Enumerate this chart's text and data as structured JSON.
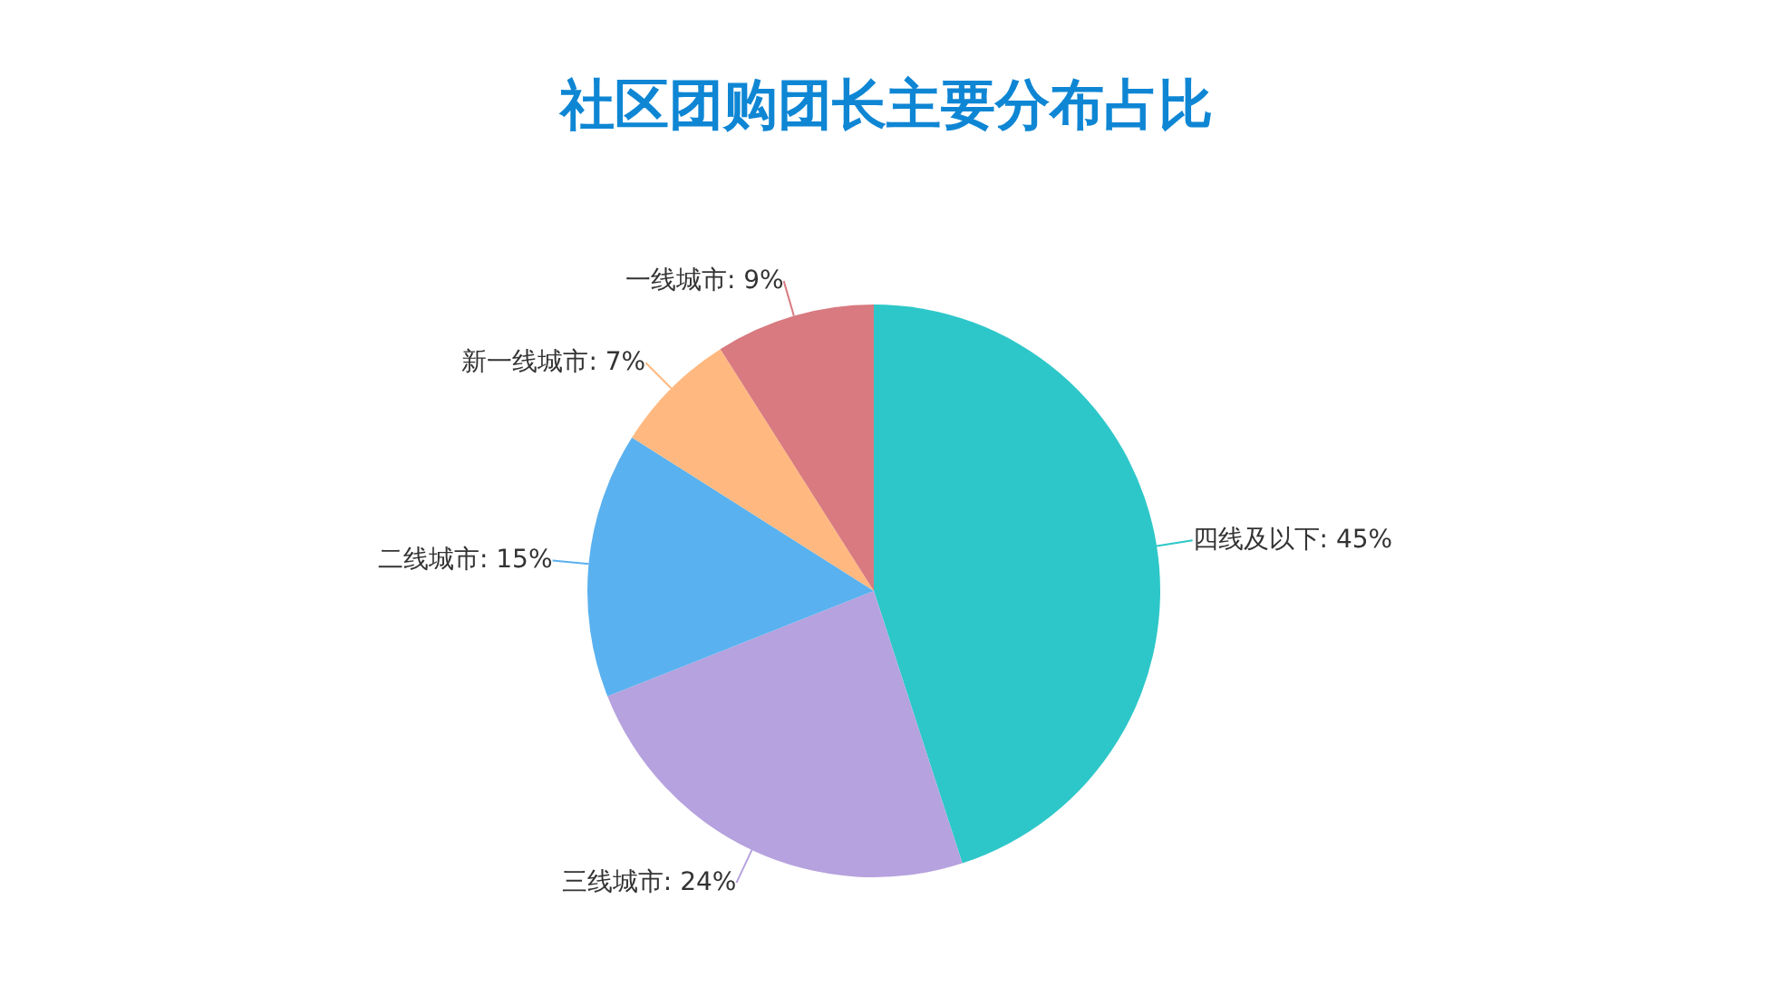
{
  "chart_data": {
    "type": "pie",
    "title": "社区团购团长主要分布占比",
    "categories": [
      "四线及以下",
      "三线城市",
      "二线城市",
      "新一线城市",
      "一线城市"
    ],
    "values": [
      45,
      24,
      15,
      7,
      9
    ],
    "value_labels": [
      "45%",
      "24%",
      "15%",
      "7%",
      "9%"
    ],
    "colors": [
      "#2ec7c9",
      "#b6a2de",
      "#5ab1ef",
      "#ffb980",
      "#d87a80"
    ],
    "legend": false
  }
}
